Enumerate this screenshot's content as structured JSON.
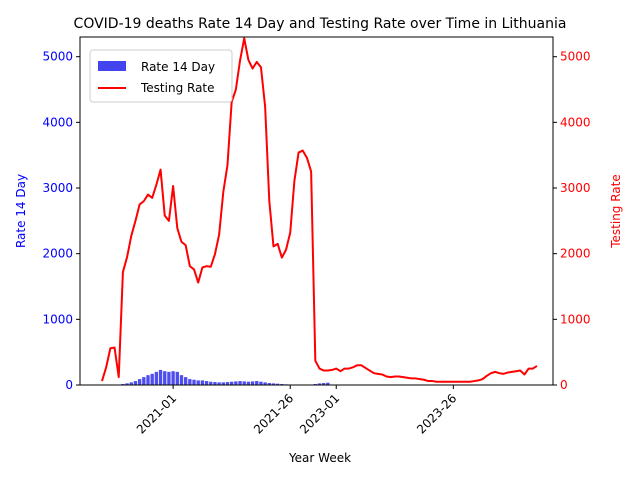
{
  "chart_data": {
    "type": "bar+line",
    "title": "COVID-19 deaths Rate 14 Day and Testing Rate over Time in Lithuania",
    "xlabel": "Year Week",
    "ylabel_left": "Rate 14 Day",
    "ylabel_right": "Testing Rate",
    "ylim_left": [
      0,
      5300
    ],
    "ylim_right": [
      0,
      5300
    ],
    "x_tick_labels": [
      "2021-01",
      "2021-26",
      "2023-01",
      "2023-26"
    ],
    "y_tick_labels": [
      "0",
      "1000",
      "2000",
      "3000",
      "4000",
      "5000"
    ],
    "legend": [
      "Rate 14 Day",
      "Testing Rate"
    ],
    "legend_position": "top-left",
    "colors": {
      "bars": "#4444ee",
      "line": "#ff0000",
      "left_axis": "#0000ff",
      "right_axis": "#ff0000"
    },
    "series": [
      {
        "name": "Rate 14 Day",
        "kind": "bar",
        "values": [
          0,
          0,
          8,
          4,
          6,
          15,
          25,
          40,
          60,
          90,
          120,
          150,
          170,
          200,
          230,
          210,
          200,
          210,
          200,
          150,
          120,
          90,
          80,
          70,
          70,
          60,
          50,
          45,
          40,
          40,
          45,
          50,
          55,
          60,
          55,
          50,
          55,
          60,
          50,
          40,
          30,
          25,
          20,
          15,
          10,
          5,
          3,
          3,
          2,
          2,
          5,
          15,
          25,
          30,
          35,
          5,
          3,
          2,
          2,
          2,
          1,
          1,
          1,
          1,
          1,
          1,
          1,
          1,
          1,
          1,
          1,
          1,
          1,
          1,
          1,
          1,
          1,
          1,
          1,
          1,
          1,
          1,
          1,
          1,
          1,
          1,
          1,
          1,
          1,
          1,
          1,
          1,
          1,
          1,
          1,
          1,
          1,
          1,
          1,
          1,
          1,
          1,
          1,
          1,
          1,
          1,
          1,
          1,
          1
        ]
      },
      {
        "name": "Testing Rate",
        "kind": "line",
        "values": [
          60,
          270,
          560,
          570,
          120,
          1720,
          1950,
          2270,
          2500,
          2750,
          2800,
          2900,
          2850,
          3050,
          3280,
          2580,
          2500,
          3030,
          2390,
          2180,
          2130,
          1810,
          1760,
          1560,
          1790,
          1810,
          1800,
          1990,
          2290,
          2940,
          3350,
          4310,
          4500,
          4940,
          5280,
          4950,
          4820,
          4920,
          4840,
          4240,
          2800,
          2110,
          2150,
          1940,
          2060,
          2320,
          3110,
          3540,
          3570,
          3460,
          3250,
          370,
          250,
          220,
          220,
          230,
          250,
          210,
          250,
          250,
          270,
          300,
          300,
          260,
          220,
          180,
          170,
          160,
          130,
          120,
          130,
          130,
          120,
          110,
          100,
          100,
          90,
          80,
          60,
          60,
          50,
          50,
          50,
          50,
          50,
          50,
          50,
          50,
          50,
          60,
          70,
          90,
          140,
          180,
          200,
          180,
          170,
          190,
          200,
          210,
          220,
          160,
          250,
          250,
          290
        ]
      }
    ],
    "x_tick_positions_index": [
      17,
      45,
      56,
      84
    ]
  }
}
